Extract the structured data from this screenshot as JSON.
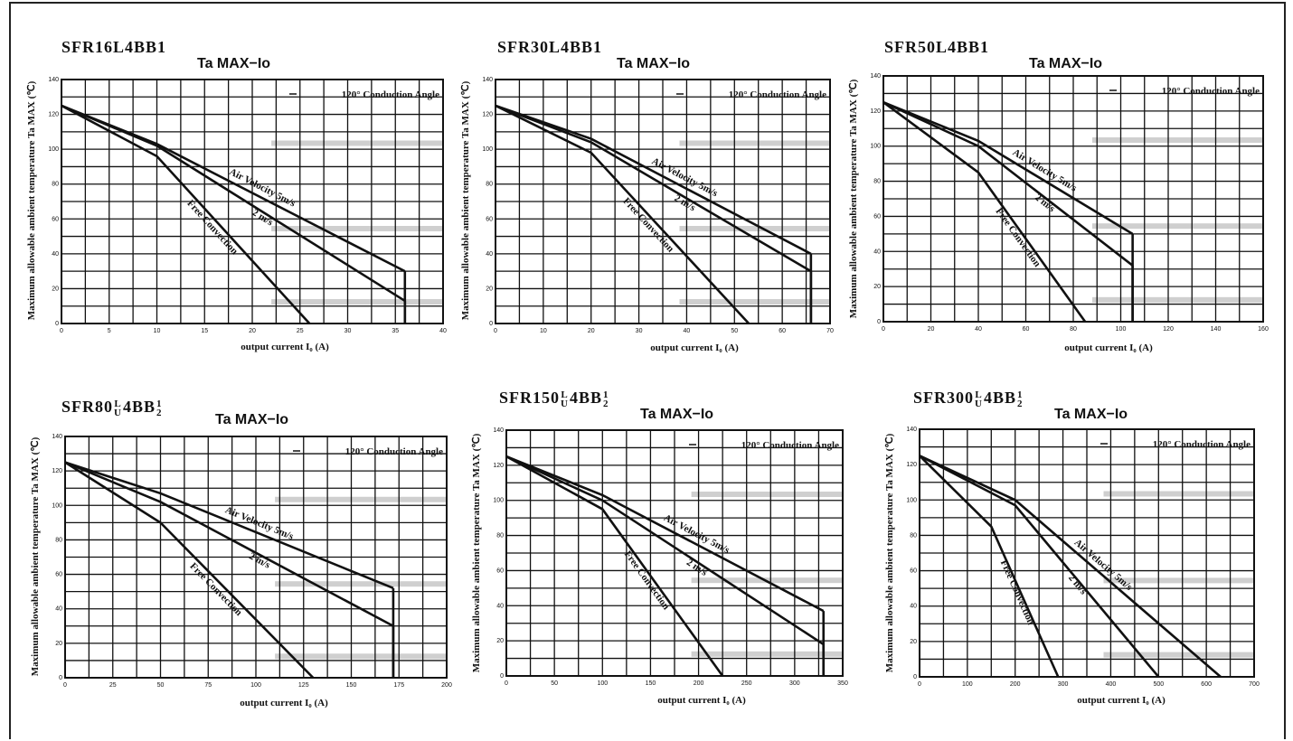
{
  "chart_data": [
    {
      "type": "line",
      "panel_title": "SFR16L4BB1",
      "title": "Ta MAX−Io",
      "annotation": "120° Conduction Angle",
      "xlabel": "output current I₀ (A)",
      "ylabel": "Maximum allowable ambient temperature Ta MAX (℃)",
      "xlim": [
        0,
        40
      ],
      "ylim": [
        0,
        140
      ],
      "xticks": [
        0,
        5,
        10,
        15,
        20,
        25,
        30,
        35,
        40
      ],
      "yticks": [
        0,
        20,
        40,
        60,
        80,
        100,
        120,
        140
      ],
      "series": [
        {
          "name": "Air Velocity 5m/s",
          "x": [
            0,
            10,
            36
          ],
          "y": [
            125,
            103,
            30
          ],
          "cutoff": true
        },
        {
          "name": "2 m/s",
          "x": [
            0,
            10,
            36
          ],
          "y": [
            125,
            102,
            13
          ],
          "cutoff": true
        },
        {
          "name": "Free Convection",
          "x": [
            0,
            10,
            26
          ],
          "y": [
            125,
            96,
            0
          ]
        }
      ]
    },
    {
      "type": "line",
      "panel_title": "SFR30L4BB1",
      "title": "Ta MAX−Io",
      "annotation": "120° Conduction Angle",
      "xlabel": "output current I₀ (A)",
      "ylabel": "Maximum allowable ambient temperature Ta MAX (℃)",
      "xlim": [
        0,
        70
      ],
      "ylim": [
        0,
        140
      ],
      "xticks": [
        0,
        10,
        20,
        30,
        40,
        50,
        60,
        70
      ],
      "yticks": [
        0,
        20,
        40,
        60,
        80,
        100,
        120,
        140
      ],
      "series": [
        {
          "name": "Air Velocity 5m/s",
          "x": [
            0,
            20,
            66
          ],
          "y": [
            125,
            106,
            40
          ],
          "cutoff": true
        },
        {
          "name": "2 m/s",
          "x": [
            0,
            20,
            66
          ],
          "y": [
            125,
            104,
            30
          ],
          "cutoff": true
        },
        {
          "name": "Free Convection",
          "x": [
            0,
            20,
            53
          ],
          "y": [
            125,
            98,
            0
          ]
        }
      ]
    },
    {
      "type": "line",
      "panel_title": "SFR50L4BB1",
      "title": "Ta MAX−Io",
      "annotation": "120° Conduction Angle",
      "xlabel": "output current I₀ (A)",
      "ylabel": "Maximum allowable ambient temperature Ta MAX (℃)",
      "xlim": [
        0,
        160
      ],
      "ylim": [
        0,
        140
      ],
      "xticks": [
        0,
        20,
        40,
        60,
        80,
        100,
        120,
        140,
        160
      ],
      "yticks": [
        0,
        20,
        40,
        60,
        80,
        100,
        120,
        140
      ],
      "series": [
        {
          "name": "Air Velocity 5m/s",
          "x": [
            0,
            40,
            105
          ],
          "y": [
            125,
            103,
            50
          ],
          "cutoff": true
        },
        {
          "name": "2 m/s",
          "x": [
            0,
            40,
            105
          ],
          "y": [
            125,
            100,
            32
          ],
          "cutoff": true
        },
        {
          "name": "Free Convection",
          "x": [
            0,
            40,
            85
          ],
          "y": [
            125,
            85,
            0
          ]
        }
      ]
    },
    {
      "type": "line",
      "panel_title": "SFR80L4BB2",
      "title_html": "SFR80<span class=\"frac\"><span>L</span><span>U</span></span>4BB<span class=\"frac\"><span>1</span><span>2</span></span>",
      "title": "Ta MAX−Io",
      "annotation": "120° Conduction Angle",
      "xlabel": "output current I₀ (A)",
      "ylabel": "Maximum allowable ambient temperature Ta MAX (℃)",
      "xlim": [
        0,
        200
      ],
      "ylim": [
        0,
        140
      ],
      "xticks": [
        0,
        25,
        50,
        75,
        100,
        125,
        150,
        175,
        200
      ],
      "yticks": [
        0,
        20,
        40,
        60,
        80,
        100,
        120,
        140
      ],
      "series": [
        {
          "name": "Air Velocity 5m/s",
          "x": [
            0,
            50,
            172
          ],
          "y": [
            125,
            107,
            52
          ],
          "cutoff": true
        },
        {
          "name": "2 m/s",
          "x": [
            0,
            50,
            172
          ],
          "y": [
            125,
            102,
            30
          ],
          "cutoff": true
        },
        {
          "name": "Free Convection",
          "x": [
            0,
            50,
            130
          ],
          "y": [
            125,
            90,
            0
          ]
        }
      ]
    },
    {
      "type": "line",
      "panel_title": "SFR150L4BB2",
      "title_html": "SFR150<span class=\"frac\"><span>L</span><span>U</span></span>4BB<span class=\"frac\"><span>1</span><span>2</span></span>",
      "title": "Ta MAX−Io",
      "annotation": "120° Conduction Angle",
      "xlabel": "output current I₀ (A)",
      "ylabel": "Maximum allowable ambient temperature Ta MAX (℃)",
      "xlim": [
        0,
        350
      ],
      "ylim": [
        0,
        140
      ],
      "xticks": [
        0,
        50,
        100,
        150,
        200,
        250,
        300,
        350
      ],
      "yticks": [
        0,
        20,
        40,
        60,
        80,
        100,
        120,
        140
      ],
      "series": [
        {
          "name": "Air Velocity 5m/s",
          "x": [
            0,
            100,
            330
          ],
          "y": [
            125,
            103,
            37
          ],
          "cutoff": true
        },
        {
          "name": "2 m/s",
          "x": [
            0,
            100,
            330
          ],
          "y": [
            125,
            100,
            18
          ],
          "cutoff": true
        },
        {
          "name": "Free Convection",
          "x": [
            0,
            100,
            225
          ],
          "y": [
            125,
            95,
            0
          ]
        }
      ]
    },
    {
      "type": "line",
      "panel_title": "SFR300L4BB2",
      "title_html": "SFR300<span class=\"frac\"><span>L</span><span>U</span></span>4BB<span class=\"frac\"><span>1</span><span>2</span></span>",
      "title": "Ta MAX−Io",
      "annotation": "120° Conduction Angle",
      "xlabel": "output current I₀ (A)",
      "ylabel": "Maximum allowable ambient temperature Ta MAX (℃)",
      "xlim": [
        0,
        700
      ],
      "ylim": [
        0,
        140
      ],
      "xticks": [
        0,
        100,
        200,
        300,
        400,
        500,
        600,
        700
      ],
      "yticks": [
        0,
        20,
        40,
        60,
        80,
        100,
        120,
        140
      ],
      "series": [
        {
          "name": "Air Velocity 5m/s",
          "x": [
            0,
            200,
            630
          ],
          "y": [
            125,
            100,
            0
          ]
        },
        {
          "name": "2 m/s",
          "x": [
            0,
            200,
            500
          ],
          "y": [
            125,
            97,
            0
          ]
        },
        {
          "name": "Free Convection",
          "x": [
            0,
            150,
            290
          ],
          "y": [
            125,
            85,
            0
          ]
        }
      ]
    }
  ]
}
